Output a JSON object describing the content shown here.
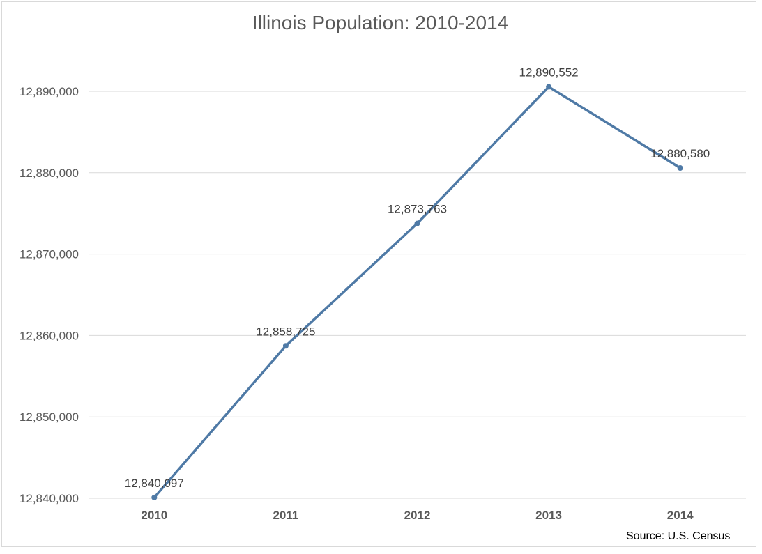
{
  "chart_data": {
    "type": "line",
    "title": "Illinois Population:  2010-2014",
    "xlabel": "",
    "ylabel": "",
    "categories": [
      "2010",
      "2011",
      "2012",
      "2013",
      "2014"
    ],
    "series": [
      {
        "values": [
          12840097,
          12858725,
          12873763,
          12890552,
          12880580
        ],
        "data_labels": [
          "12,840,097",
          "12,858,725",
          "12,873,763",
          "12,890,552",
          "12,880,580"
        ]
      }
    ],
    "yticks": [
      12840000,
      12850000,
      12860000,
      12870000,
      12880000,
      12890000
    ],
    "ytick_labels": [
      "12,840,000",
      "12,850,000",
      "12,860,000",
      "12,870,000",
      "12,880,000",
      "12,890,000"
    ],
    "ylim": [
      12840000,
      12890000
    ],
    "grid": true,
    "legend": "none",
    "line_color": "#4f7aa6",
    "source": "Source: U.S. Census"
  }
}
